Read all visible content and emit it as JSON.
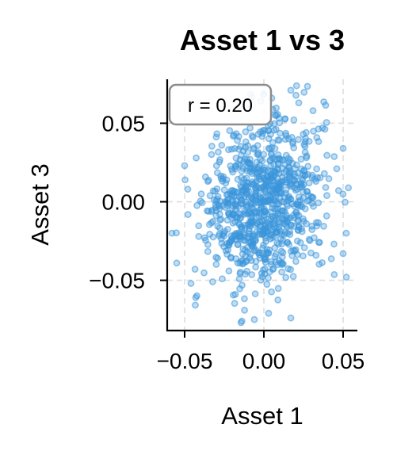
{
  "chart_data": {
    "type": "scatter",
    "title": "Asset 1 vs 3",
    "xlabel": "Asset 1",
    "ylabel": "Asset 3",
    "xlim": [
      -0.061,
      0.059
    ],
    "ylim": [
      -0.082,
      0.078
    ],
    "xticks": [
      -0.05,
      0.0,
      0.05
    ],
    "yticks": [
      -0.05,
      0.0,
      0.05
    ],
    "xtick_labels": [
      "−0.05",
      "0.00",
      "0.05"
    ],
    "ytick_labels": [
      "−0.05",
      "0.00",
      "0.05"
    ],
    "grid": true,
    "annotation": "r = 0.20",
    "color": "#3a96db",
    "n_points": 900,
    "correlation": 0.2,
    "x_std": 0.018,
    "y_std": 0.026,
    "highlighted_points": [
      {
        "x": 0.017,
        "y": 0.071
      },
      {
        "x": 0.022,
        "y": 0.063
      },
      {
        "x": 0.005,
        "y": 0.066
      },
      {
        "x": 0.031,
        "y": 0.058
      },
      {
        "x": 0.05,
        "y": 0.034
      },
      {
        "x": -0.05,
        "y": 0.023
      },
      {
        "x": -0.048,
        "y": 0.008
      },
      {
        "x": -0.058,
        "y": -0.02
      },
      {
        "x": -0.055,
        "y": -0.039
      },
      {
        "x": -0.046,
        "y": -0.052
      },
      {
        "x": -0.043,
        "y": -0.061
      },
      {
        "x": -0.018,
        "y": -0.059
      },
      {
        "x": -0.006,
        "y": -0.075
      },
      {
        "x": 0.017,
        "y": -0.074
      },
      {
        "x": 0.003,
        "y": -0.071
      },
      {
        "x": 0.052,
        "y": -0.048
      },
      {
        "x": 0.05,
        "y": -0.033
      },
      {
        "x": 0.052,
        "y": -0.02
      },
      {
        "x": 0.037,
        "y": 0.047
      },
      {
        "x": 0.046,
        "y": 0.021
      }
    ]
  }
}
